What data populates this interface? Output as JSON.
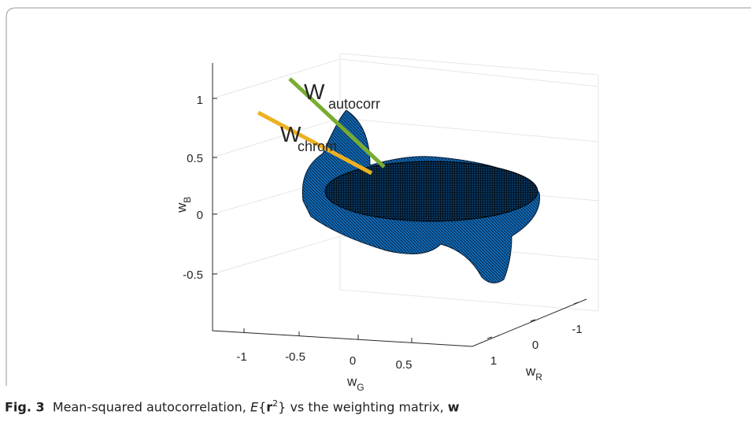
{
  "figure": {
    "z_axis": {
      "ticks": [
        "1",
        "0.5",
        "0",
        "-0.5"
      ],
      "label": {
        "base": "w",
        "sub": "B"
      }
    },
    "x_axis": {
      "ticks": [
        "-1",
        "-0.5",
        "0",
        "0.5"
      ],
      "label": {
        "base": "w",
        "sub": "G"
      }
    },
    "y_axis": {
      "ticks": [
        "-1",
        "0",
        "1"
      ],
      "label": {
        "base": "w",
        "sub": "R"
      }
    },
    "annotations": [
      {
        "base": "W",
        "sub": "autocorr",
        "color": "#77ac30"
      },
      {
        "base": "W",
        "sub": "chrom",
        "color": "#edb120"
      }
    ]
  },
  "caption": {
    "label": "Fig. 3",
    "text": "Mean-squared autocorrelation,",
    "e": "E",
    "open": "{",
    "r": "r",
    "power": "2",
    "close": "}",
    "vs": "vs the weighting matrix,",
    "w": "w"
  }
}
